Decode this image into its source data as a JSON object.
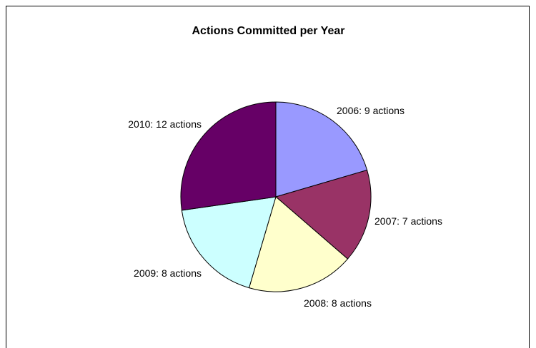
{
  "chart_data": {
    "type": "pie",
    "title": "Actions Committed per Year",
    "categories": [
      "2006",
      "2007",
      "2008",
      "2009",
      "2010"
    ],
    "values": [
      9,
      7,
      8,
      8,
      12
    ],
    "labels": [
      "2006: 9 actions",
      "2007: 7 actions",
      "2008: 8 actions",
      "2009: 8 actions",
      "2010: 12 actions"
    ],
    "colors": [
      "#9999ff",
      "#993366",
      "#ffffcc",
      "#ccffff",
      "#660066"
    ],
    "legend": "none"
  }
}
